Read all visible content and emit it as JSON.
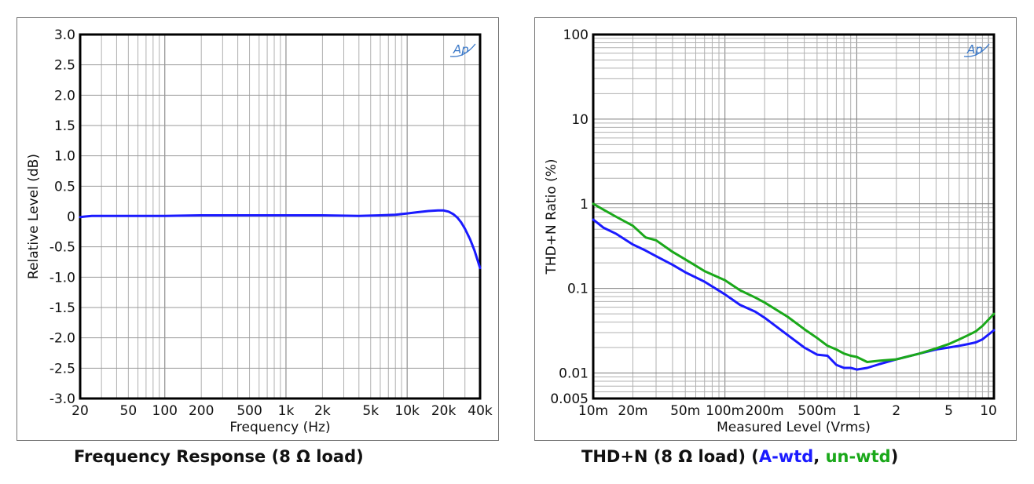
{
  "chart_data": [
    {
      "type": "line",
      "xlabel": "Frequency (Hz)",
      "ylabel": "Relative Level (dB)",
      "x_scale": "log",
      "xlim": [
        20,
        40000
      ],
      "ylim": [
        -3.0,
        3.0
      ],
      "grid": true,
      "logo": "Ap",
      "x_ticks": [
        {
          "v": 20,
          "label": "20"
        },
        {
          "v": 50,
          "label": "50"
        },
        {
          "v": 100,
          "label": "100"
        },
        {
          "v": 200,
          "label": "200"
        },
        {
          "v": 500,
          "label": "500"
        },
        {
          "v": 1000,
          "label": "1k"
        },
        {
          "v": 2000,
          "label": "2k"
        },
        {
          "v": 5000,
          "label": "5k"
        },
        {
          "v": 10000,
          "label": "10k"
        },
        {
          "v": 20000,
          "label": "20k"
        },
        {
          "v": 40000,
          "label": "40k"
        }
      ],
      "y_ticks": [
        {
          "v": 3.0,
          "label": "3.0"
        },
        {
          "v": 2.5,
          "label": "2.5"
        },
        {
          "v": 2.0,
          "label": "2.0"
        },
        {
          "v": 1.5,
          "label": "1.5"
        },
        {
          "v": 1.0,
          "label": "1.0"
        },
        {
          "v": 0.5,
          "label": "0.5"
        },
        {
          "v": 0,
          "label": "0"
        },
        {
          "v": -0.5,
          "label": "-0.5"
        },
        {
          "v": -1.0,
          "label": "-1.0"
        },
        {
          "v": -1.5,
          "label": "-1.5"
        },
        {
          "v": -2.0,
          "label": "-2.0"
        },
        {
          "v": -2.5,
          "label": "-2.5"
        },
        {
          "v": -3.0,
          "label": "-3.0"
        }
      ],
      "series": [
        {
          "color": "#1a1aff",
          "x": [
            20,
            22,
            25,
            30,
            40,
            60,
            100,
            200,
            500,
            1000,
            2000,
            4000,
            6000,
            8000,
            10000,
            12000,
            15000,
            18000,
            20000,
            22000,
            24000,
            26000,
            28000,
            30000,
            33000,
            36000,
            40000
          ],
          "y": [
            -0.01,
            0.0,
            0.01,
            0.01,
            0.01,
            0.01,
            0.01,
            0.02,
            0.02,
            0.02,
            0.02,
            0.01,
            0.02,
            0.03,
            0.05,
            0.07,
            0.09,
            0.1,
            0.1,
            0.08,
            0.04,
            -0.02,
            -0.1,
            -0.2,
            -0.37,
            -0.56,
            -0.85
          ]
        }
      ]
    },
    {
      "type": "line",
      "xlabel": "Measured Level (Vrms)",
      "ylabel": "THD+N Ratio (%)",
      "x_scale": "log",
      "y_scale": "log",
      "xlim": [
        0.01,
        11
      ],
      "ylim": [
        0.005,
        100
      ],
      "grid": true,
      "logo": "Ap",
      "x_ticks": [
        {
          "v": 0.01,
          "label": "10m"
        },
        {
          "v": 0.02,
          "label": "20m"
        },
        {
          "v": 0.05,
          "label": "50m"
        },
        {
          "v": 0.1,
          "label": "100m"
        },
        {
          "v": 0.2,
          "label": "200m"
        },
        {
          "v": 0.5,
          "label": "500m"
        },
        {
          "v": 1,
          "label": "1"
        },
        {
          "v": 2,
          "label": "2"
        },
        {
          "v": 5,
          "label": "5"
        },
        {
          "v": 10,
          "label": "10"
        }
      ],
      "y_ticks": [
        {
          "v": 100,
          "label": "100"
        },
        {
          "v": 10,
          "label": "10"
        },
        {
          "v": 1,
          "label": "1"
        },
        {
          "v": 0.1,
          "label": "0.1"
        },
        {
          "v": 0.01,
          "label": "0.01"
        },
        {
          "v": 0.005,
          "label": "0.005"
        }
      ],
      "series": [
        {
          "name": "A-wtd",
          "color": "#1a1aff",
          "x": [
            0.01,
            0.012,
            0.015,
            0.02,
            0.025,
            0.03,
            0.04,
            0.05,
            0.07,
            0.1,
            0.13,
            0.17,
            0.2,
            0.3,
            0.4,
            0.5,
            0.6,
            0.7,
            0.8,
            0.9,
            1.0,
            1.2,
            1.5,
            2.0,
            3.0,
            4.0,
            5.0,
            6.0,
            7.0,
            8.0,
            9.0,
            11.0
          ],
          "y": [
            0.65,
            0.52,
            0.44,
            0.33,
            0.28,
            0.24,
            0.19,
            0.155,
            0.12,
            0.085,
            0.064,
            0.053,
            0.045,
            0.028,
            0.02,
            0.0165,
            0.016,
            0.0125,
            0.0115,
            0.0115,
            0.011,
            0.0115,
            0.0128,
            0.0145,
            0.017,
            0.019,
            0.02,
            0.021,
            0.022,
            0.023,
            0.025,
            0.032
          ]
        },
        {
          "name": "un-wtd",
          "color": "#1aa81a",
          "x": [
            0.01,
            0.012,
            0.015,
            0.02,
            0.025,
            0.03,
            0.04,
            0.05,
            0.07,
            0.1,
            0.13,
            0.17,
            0.2,
            0.3,
            0.4,
            0.5,
            0.6,
            0.7,
            0.8,
            0.9,
            1.0,
            1.2,
            1.5,
            2.0,
            3.0,
            4.0,
            5.0,
            6.0,
            7.0,
            8.0,
            9.0,
            11.0
          ],
          "y": [
            1.0,
            0.85,
            0.7,
            0.55,
            0.4,
            0.37,
            0.27,
            0.22,
            0.16,
            0.125,
            0.095,
            0.078,
            0.068,
            0.046,
            0.033,
            0.026,
            0.021,
            0.019,
            0.017,
            0.016,
            0.0155,
            0.0135,
            0.014,
            0.0145,
            0.017,
            0.0195,
            0.022,
            0.025,
            0.028,
            0.031,
            0.036,
            0.05
          ]
        }
      ]
    }
  ],
  "captions": {
    "left": "Frequency Response (8 Ω load)",
    "right_prefix": "THD+N (8 Ω load) (",
    "right_a": "A-wtd",
    "right_sep": ", ",
    "right_b": "un-wtd",
    "right_suffix": ")"
  }
}
